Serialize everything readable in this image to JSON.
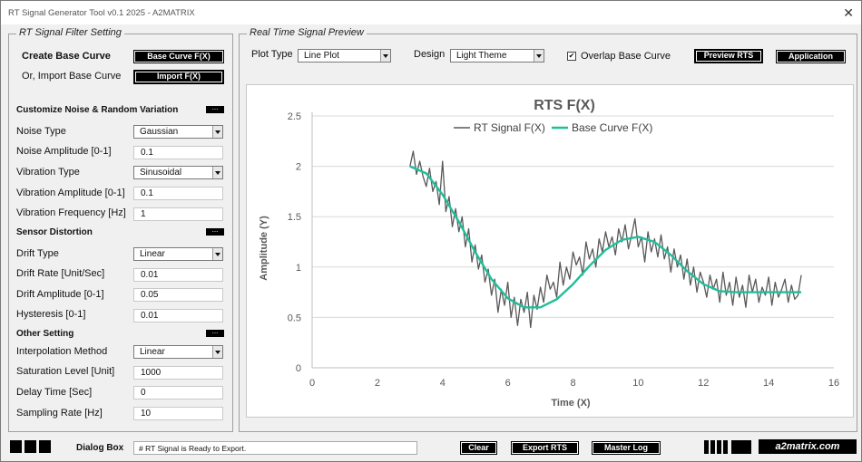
{
  "window": {
    "title": "RT Signal Generator Tool v0.1 2025 - A2MATRIX",
    "close_label": "✕"
  },
  "left_panel": {
    "title": "RT Signal Filter Setting",
    "create_label": "Create Base Curve",
    "create_button": "Base Curve F(X)",
    "import_label": "Or, Import Base Curve",
    "import_button": "Import F(X)",
    "sections": {
      "noise": "Customize Noise & Random Variation",
      "sensor": "Sensor Distortion",
      "other": "Other Setting"
    },
    "dots_label": "...",
    "fields": {
      "noise_type": {
        "label": "Noise Type",
        "value": "Gaussian"
      },
      "noise_amplitude": {
        "label": "Noise Amplitude [0-1]",
        "value": "0.1"
      },
      "vibration_type": {
        "label": "Vibration Type",
        "value": "Sinusoidal"
      },
      "vibration_amplitude": {
        "label": "Vibration Amplitude [0-1]",
        "value": "0.1"
      },
      "vibration_frequency": {
        "label": "Vibration Frequency [Hz]",
        "value": "1"
      },
      "drift_type": {
        "label": "Drift Type",
        "value": "Linear"
      },
      "drift_rate": {
        "label": "Drift Rate [Unit/Sec]",
        "value": "0.01"
      },
      "drift_amplitude": {
        "label": "Drift Amplitude [0-1]",
        "value": "0.05"
      },
      "hysteresis": {
        "label": "Hysteresis [0-1]",
        "value": "0.01"
      },
      "interpolation": {
        "label": "Interpolation Method",
        "value": "Linear"
      },
      "saturation": {
        "label": "Saturation Level [Unit]",
        "value": "1000"
      },
      "delay": {
        "label": "Delay Time [Sec]",
        "value": "0"
      },
      "sampling": {
        "label": "Sampling Rate [Hz]",
        "value": "10"
      }
    }
  },
  "right_panel": {
    "title": "Real Time Signal Preview",
    "plot_type_label": "Plot Type",
    "plot_type_value": "Line Plot",
    "design_label": "Design",
    "design_value": "Light Theme",
    "overlap_label": "Overlap Base Curve",
    "overlap_checked": "✔",
    "preview_button": "Preview RTS",
    "application_button": "Application"
  },
  "bottom": {
    "dialog_label": "Dialog Box",
    "dialog_text": "# RT Signal is Ready to Export.",
    "clear_button": "Clear",
    "export_button": "Export  RTS",
    "masterlog_button": "Master Log",
    "site": "a2matrix.com"
  },
  "colors": {
    "rts": "#595959",
    "base": "#1fbf9a",
    "grid": "#d9d9d9"
  },
  "chart_data": {
    "type": "line",
    "title": "RTS F(X)",
    "xlabel": "Time (X)",
    "ylabel": "Amplitude (Y)",
    "xlim": [
      0,
      16
    ],
    "ylim": [
      0,
      2.5
    ],
    "xticks": [
      "0",
      "2",
      "4",
      "6",
      "8",
      "10",
      "12",
      "14",
      "16"
    ],
    "yticks": [
      "0",
      "0.5",
      "1",
      "1.5",
      "2",
      "2.5"
    ],
    "grid": "horizontal",
    "legend_position": "top",
    "series": [
      {
        "name": "RT Signal F(X)",
        "color": "#595959",
        "x": [
          3.0,
          3.1,
          3.2,
          3.3,
          3.4,
          3.5,
          3.6,
          3.7,
          3.8,
          3.9,
          4.0,
          4.1,
          4.2,
          4.3,
          4.4,
          4.5,
          4.6,
          4.7,
          4.8,
          4.9,
          5.0,
          5.1,
          5.2,
          5.3,
          5.4,
          5.5,
          5.6,
          5.7,
          5.8,
          5.9,
          6.0,
          6.1,
          6.2,
          6.3,
          6.4,
          6.5,
          6.6,
          6.7,
          6.8,
          6.9,
          7.0,
          7.1,
          7.2,
          7.3,
          7.4,
          7.5,
          7.6,
          7.7,
          7.8,
          7.9,
          8.0,
          8.1,
          8.2,
          8.3,
          8.4,
          8.5,
          8.6,
          8.7,
          8.8,
          8.9,
          9.0,
          9.1,
          9.2,
          9.3,
          9.4,
          9.5,
          9.6,
          9.7,
          9.8,
          9.9,
          10.0,
          10.1,
          10.2,
          10.3,
          10.4,
          10.5,
          10.6,
          10.7,
          10.8,
          10.9,
          11.0,
          11.1,
          11.2,
          11.3,
          11.4,
          11.5,
          11.6,
          11.7,
          11.8,
          11.9,
          12.0,
          12.1,
          12.2,
          12.3,
          12.4,
          12.5,
          12.6,
          12.7,
          12.8,
          12.9,
          13.0,
          13.1,
          13.2,
          13.3,
          13.4,
          13.5,
          13.6,
          13.7,
          13.8,
          13.9,
          14.0,
          14.1,
          14.2,
          14.3,
          14.4,
          14.5,
          14.6,
          14.7,
          14.8,
          14.9,
          15.0
        ],
        "y": [
          2.0,
          2.15,
          1.92,
          2.05,
          1.9,
          1.8,
          1.98,
          1.75,
          1.85,
          1.62,
          2.05,
          1.55,
          1.7,
          1.4,
          1.58,
          1.35,
          1.5,
          1.2,
          1.38,
          1.05,
          1.22,
          0.98,
          1.12,
          0.85,
          0.98,
          0.72,
          0.88,
          0.55,
          0.78,
          0.62,
          0.85,
          0.5,
          0.7,
          0.42,
          0.68,
          0.55,
          0.75,
          0.4,
          0.72,
          0.58,
          0.8,
          0.65,
          0.92,
          0.78,
          0.85,
          0.7,
          1.05,
          0.82,
          1.0,
          0.88,
          1.15,
          1.02,
          1.1,
          0.92,
          1.25,
          1.08,
          1.18,
          1.0,
          1.28,
          1.15,
          1.35,
          1.2,
          1.3,
          1.12,
          1.38,
          1.25,
          1.42,
          1.18,
          1.32,
          1.48,
          1.2,
          1.3,
          1.05,
          1.35,
          1.15,
          1.28,
          1.1,
          1.32,
          1.08,
          1.2,
          0.95,
          1.18,
          1.0,
          1.12,
          0.88,
          1.08,
          0.82,
          1.0,
          0.75,
          0.95,
          0.85,
          0.7,
          0.92,
          0.78,
          0.88,
          0.65,
          0.95,
          0.72,
          0.85,
          0.62,
          0.9,
          0.7,
          0.82,
          0.6,
          0.92,
          0.75,
          0.88,
          0.65,
          0.8,
          0.72,
          0.9,
          0.62,
          0.85,
          0.7,
          0.78,
          0.88,
          0.65,
          0.82,
          0.68,
          0.72,
          0.92
        ]
      },
      {
        "name": "Base Curve F(X)",
        "color": "#1fbf9a",
        "x": [
          3.0,
          3.5,
          4.0,
          4.5,
          5.0,
          5.5,
          6.0,
          6.5,
          7.0,
          7.5,
          8.0,
          8.5,
          9.0,
          9.5,
          10.0,
          10.5,
          11.0,
          11.5,
          12.0,
          12.5,
          13.0,
          13.5,
          14.0,
          14.5,
          15.0
        ],
        "y": [
          2.0,
          1.93,
          1.72,
          1.45,
          1.15,
          0.88,
          0.69,
          0.6,
          0.6,
          0.68,
          0.83,
          1.01,
          1.17,
          1.27,
          1.3,
          1.25,
          1.12,
          0.96,
          0.83,
          0.76,
          0.75,
          0.75,
          0.75,
          0.75,
          0.75
        ]
      }
    ]
  }
}
